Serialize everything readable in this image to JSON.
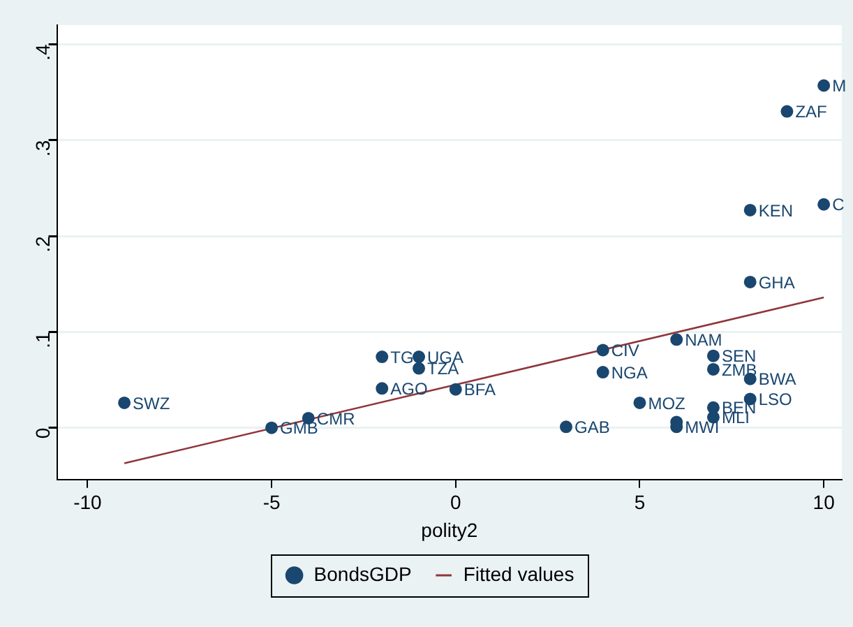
{
  "chart_data": {
    "type": "scatter",
    "xlabel": "polity2",
    "xlim": [
      -10.83,
      10.49
    ],
    "ylim": [
      -0.054,
      0.42
    ],
    "xticks": [
      -10,
      -5,
      0,
      5,
      10
    ],
    "yticks": [
      {
        "value": 0,
        "label": "0"
      },
      {
        "value": 0.1,
        "label": ".1"
      },
      {
        "value": 0.2,
        "label": ".2"
      },
      {
        "value": 0.3,
        "label": ".3"
      },
      {
        "value": 0.4,
        "label": ".4"
      }
    ],
    "grid": "y",
    "legend": "bottom",
    "marker": "circle",
    "series": [
      {
        "name": "BondsGDP",
        "color": "#1a476f",
        "x": [
          -9,
          -5,
          -4,
          -2,
          -1,
          -1,
          -2,
          0,
          3,
          4,
          4,
          5,
          6,
          7,
          7,
          8,
          8,
          7,
          7,
          6,
          6,
          10,
          9,
          8,
          10,
          8
        ],
        "values": [
          0.026,
          0.0,
          0.01,
          0.074,
          0.074,
          0.062,
          0.041,
          0.04,
          0.001,
          0.081,
          0.058,
          0.026,
          0.092,
          0.075,
          0.061,
          0.051,
          0.03,
          0.021,
          0.011,
          0.006,
          0.001,
          0.357,
          0.33,
          0.227,
          0.233,
          0.152
        ],
        "value_labels": [
          "SWZ",
          "GMB",
          "CMR",
          "TG",
          "UGA",
          "TZA",
          "AGO",
          "BFA",
          "GAB",
          "CIV",
          "NGA",
          "MOZ",
          "NAM",
          "SEN",
          "ZMB",
          "BWA",
          "LSO",
          "BEN",
          "MLI",
          null,
          "MWI",
          "M",
          "ZAF",
          "KEN",
          "C",
          "GHA"
        ]
      },
      {
        "name": "Fitted values",
        "type": "line",
        "color": "#90353b",
        "x": [
          -9,
          10
        ],
        "values": [
          -0.037,
          0.136
        ],
        "marker": "none"
      }
    ]
  }
}
